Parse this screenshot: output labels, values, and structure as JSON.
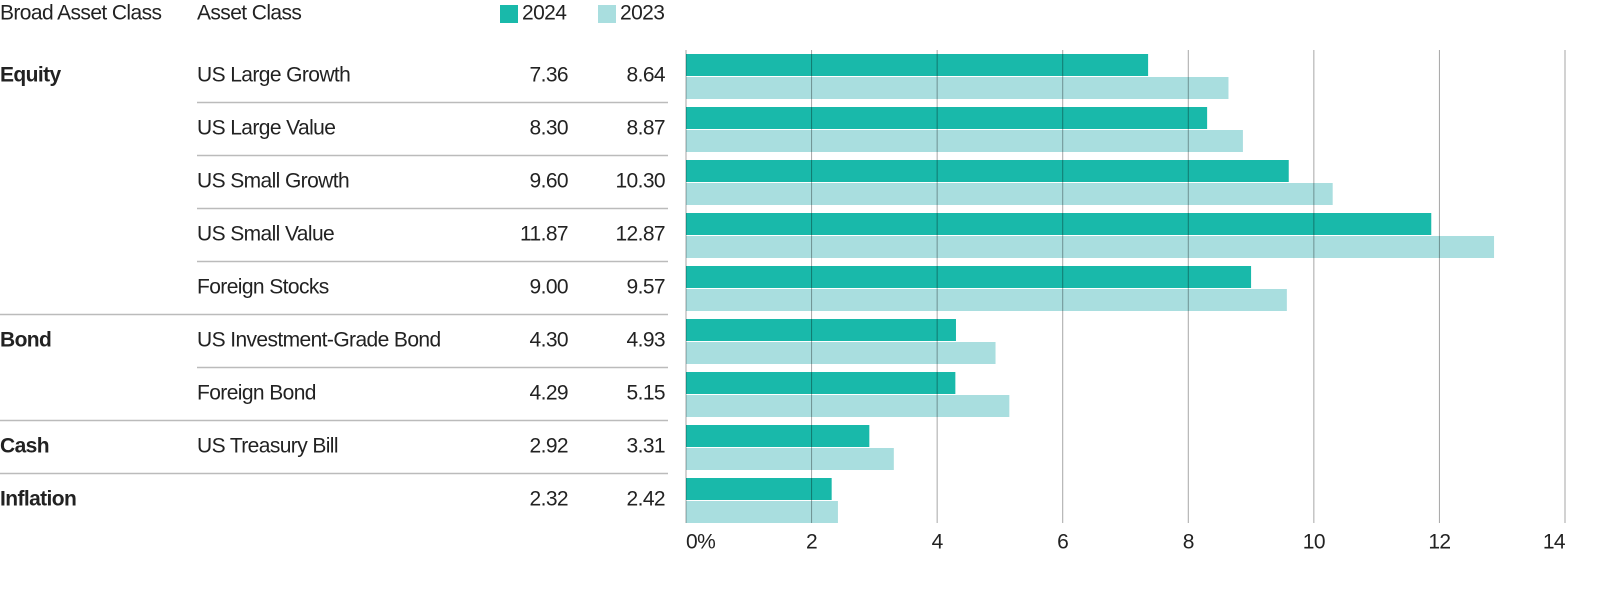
{
  "chart_data": {
    "type": "bar",
    "orientation": "horizontal",
    "column_headers": [
      "Broad Asset Class",
      "Asset Class"
    ],
    "groups": [
      "Equity",
      null,
      null,
      null,
      null,
      "Bond",
      null,
      "Cash",
      "Inflation"
    ],
    "categories": [
      "US Large Growth",
      "US Large Value",
      "US Small Growth",
      "US Small Value",
      "Foreign Stocks",
      "US Investment-Grade Bond",
      "Foreign Bond",
      "US Treasury Bill",
      null
    ],
    "series": [
      {
        "name": "2024",
        "color": "#19b9aa",
        "values": [
          7.36,
          8.3,
          9.6,
          11.87,
          9.0,
          4.3,
          4.29,
          2.92,
          2.32
        ],
        "value_labels": [
          "7.36",
          "8.30",
          "9.60",
          "11.87",
          "9.00",
          "4.30",
          "4.29",
          "2.92",
          "2.32"
        ]
      },
      {
        "name": "2023",
        "color": "#a9dedf",
        "values": [
          8.64,
          8.87,
          10.3,
          12.87,
          9.57,
          4.93,
          5.15,
          3.31,
          2.42
        ],
        "value_labels": [
          "8.64",
          "8.87",
          "10.30",
          "12.87",
          "9.57",
          "4.93",
          "5.15",
          "3.31",
          "2.42"
        ]
      }
    ],
    "xlim": [
      0,
      14
    ],
    "xticks": [
      {
        "value": 0,
        "label": "0%"
      },
      2,
      4,
      6,
      8,
      10,
      12,
      14
    ],
    "grid": true
  }
}
